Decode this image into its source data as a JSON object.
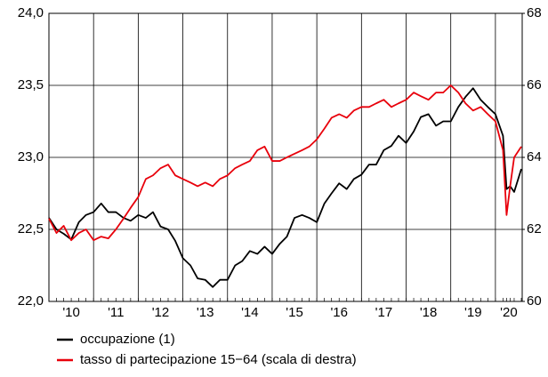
{
  "chart_data": {
    "type": "line",
    "x": [
      2010.0,
      2010.17,
      2010.33,
      2010.5,
      2010.67,
      2010.83,
      2011.0,
      2011.17,
      2011.33,
      2011.5,
      2011.67,
      2011.83,
      2012.0,
      2012.17,
      2012.33,
      2012.5,
      2012.67,
      2012.83,
      2013.0,
      2013.17,
      2013.33,
      2013.5,
      2013.67,
      2013.83,
      2014.0,
      2014.17,
      2014.33,
      2014.5,
      2014.67,
      2014.83,
      2015.0,
      2015.17,
      2015.33,
      2015.5,
      2015.67,
      2015.83,
      2016.0,
      2016.17,
      2016.33,
      2016.5,
      2016.67,
      2016.83,
      2017.0,
      2017.17,
      2017.33,
      2017.5,
      2017.67,
      2017.83,
      2018.0,
      2018.17,
      2018.33,
      2018.5,
      2018.67,
      2018.83,
      2019.0,
      2019.17,
      2019.33,
      2019.5,
      2019.67,
      2019.83,
      2020.0,
      2020.17,
      2020.25,
      2020.33,
      2020.42,
      2020.58
    ],
    "series": [
      {
        "name": "occupazione (1)",
        "color": "#000000",
        "axis": "y",
        "values": [
          22.58,
          22.5,
          22.47,
          22.43,
          22.55,
          22.6,
          22.62,
          22.68,
          22.62,
          22.62,
          22.58,
          22.56,
          22.6,
          22.58,
          22.62,
          22.52,
          22.5,
          22.42,
          22.3,
          22.25,
          22.16,
          22.15,
          22.1,
          22.15,
          22.15,
          22.25,
          22.28,
          22.35,
          22.33,
          22.38,
          22.33,
          22.4,
          22.45,
          22.58,
          22.6,
          22.58,
          22.55,
          22.68,
          22.75,
          22.82,
          22.78,
          22.85,
          22.88,
          22.95,
          22.95,
          23.05,
          23.08,
          23.15,
          23.1,
          23.18,
          23.28,
          23.3,
          23.22,
          23.25,
          23.25,
          23.35,
          23.42,
          23.48,
          23.4,
          23.35,
          23.3,
          23.15,
          22.78,
          22.8,
          22.76,
          22.92
        ]
      },
      {
        "name": "tasso di partecipazione 15−64 (scala di destra)",
        "color": "#e8000b",
        "axis": "y2",
        "values": [
          62.3,
          61.9,
          62.1,
          61.7,
          61.9,
          62.0,
          61.7,
          61.8,
          61.75,
          62.0,
          62.3,
          62.6,
          62.9,
          63.4,
          63.5,
          63.7,
          63.8,
          63.5,
          63.4,
          63.3,
          63.2,
          63.3,
          63.2,
          63.4,
          63.5,
          63.7,
          63.8,
          63.9,
          64.2,
          64.3,
          63.9,
          63.9,
          64.0,
          64.1,
          64.2,
          64.3,
          64.5,
          64.8,
          65.1,
          65.2,
          65.1,
          65.3,
          65.4,
          65.4,
          65.5,
          65.6,
          65.4,
          65.5,
          65.6,
          65.8,
          65.7,
          65.6,
          65.8,
          65.8,
          66.0,
          65.8,
          65.5,
          65.3,
          65.4,
          65.2,
          65.0,
          64.2,
          62.4,
          63.2,
          64.0,
          64.3
        ]
      }
    ],
    "xlim": [
      2010,
      2020.6
    ],
    "xticks": [
      {
        "value": 2010.5,
        "label": "'10"
      },
      {
        "value": 2011.5,
        "label": "'11"
      },
      {
        "value": 2012.5,
        "label": "'12"
      },
      {
        "value": 2013.5,
        "label": "'13"
      },
      {
        "value": 2014.5,
        "label": "'14"
      },
      {
        "value": 2015.5,
        "label": "'15"
      },
      {
        "value": 2016.5,
        "label": "'16"
      },
      {
        "value": 2017.5,
        "label": "'17"
      },
      {
        "value": 2018.5,
        "label": "'18"
      },
      {
        "value": 2019.5,
        "label": "'19"
      },
      {
        "value": 2020.3,
        "label": "'20"
      }
    ],
    "xgrid": [
      2011,
      2012,
      2013,
      2014,
      2015,
      2016,
      2017,
      2018,
      2019,
      2020
    ],
    "ylim": [
      22.0,
      24.0
    ],
    "yticks": [
      {
        "value": 22.0,
        "label": "22,0"
      },
      {
        "value": 22.5,
        "label": "22,5"
      },
      {
        "value": 23.0,
        "label": "23,0"
      },
      {
        "value": 23.5,
        "label": "23,5"
      },
      {
        "value": 24.0,
        "label": "24,0"
      }
    ],
    "y2lim": [
      60,
      68
    ],
    "y2ticks": [
      60,
      62,
      64,
      66,
      68
    ],
    "grid": true
  }
}
